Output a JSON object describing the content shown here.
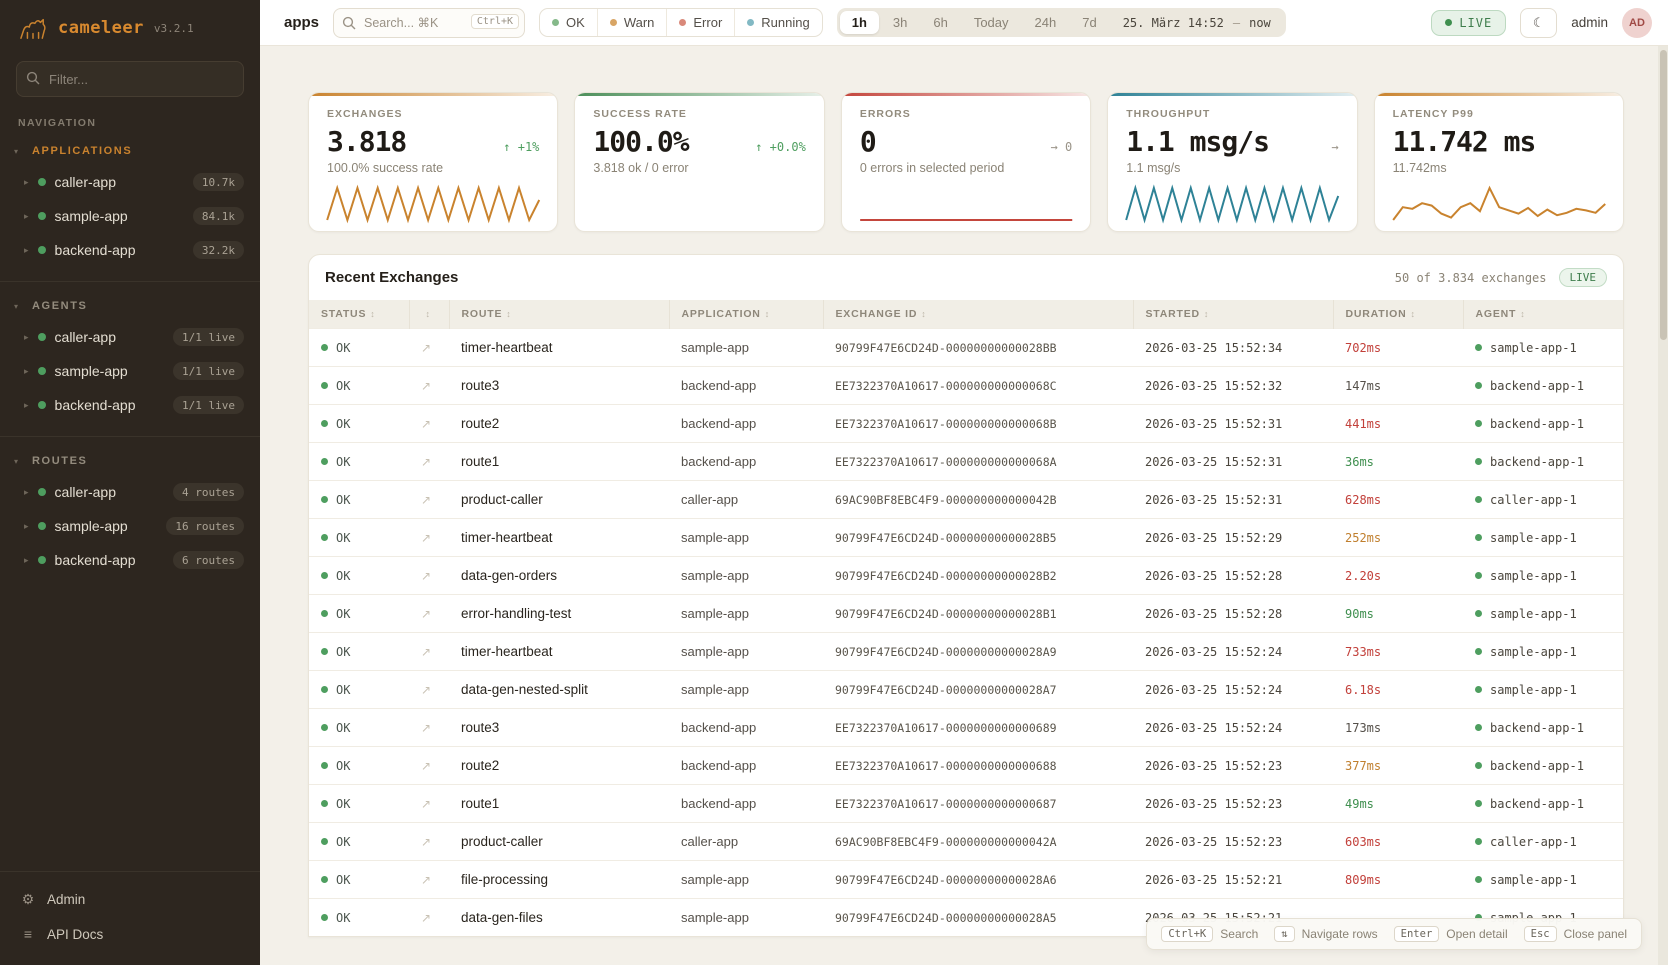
{
  "sidebar": {
    "logo": "cameleer",
    "version": "v3.2.1",
    "filter_placeholder": "Filter...",
    "nav_label": "NAVIGATION",
    "sections": [
      {
        "label": "APPLICATIONS",
        "accent": true,
        "items": [
          {
            "name": "caller-app",
            "badge": "10.7k"
          },
          {
            "name": "sample-app",
            "badge": "84.1k"
          },
          {
            "name": "backend-app",
            "badge": "32.2k"
          }
        ]
      },
      {
        "label": "AGENTS",
        "accent": false,
        "items": [
          {
            "name": "caller-app",
            "badge": "1/1 live"
          },
          {
            "name": "sample-app",
            "badge": "1/1 live"
          },
          {
            "name": "backend-app",
            "badge": "1/1 live"
          }
        ]
      },
      {
        "label": "ROUTES",
        "accent": false,
        "items": [
          {
            "name": "caller-app",
            "badge": "4 routes"
          },
          {
            "name": "sample-app",
            "badge": "16 routes"
          },
          {
            "name": "backend-app",
            "badge": "6 routes"
          }
        ]
      }
    ],
    "footer": [
      {
        "icon": "gear",
        "label": "Admin"
      },
      {
        "icon": "list",
        "label": "API Docs"
      }
    ]
  },
  "topbar": {
    "context": "apps",
    "search_placeholder": "Search... ⌘K",
    "search_kbd": "Ctrl+K",
    "status_filters": [
      {
        "label": "OK",
        "color": "#85b98a"
      },
      {
        "label": "Warn",
        "color": "#d8a565"
      },
      {
        "label": "Error",
        "color": "#d9897a"
      },
      {
        "label": "Running",
        "color": "#82b9c4"
      }
    ],
    "time_ranges": [
      "1h",
      "3h",
      "6h",
      "Today",
      "24h",
      "7d"
    ],
    "active_range": "1h",
    "date_label": "25. März 14:52",
    "date_sep": "—",
    "date_end": "now",
    "live_label": "LIVE",
    "user": "admin",
    "avatar": "AD"
  },
  "kpis": [
    {
      "label": "EXCHANGES",
      "value": "3.818",
      "delta_dir": "up",
      "delta": "+1%",
      "subtitle": "100.0% success rate",
      "accent": "#c9832e",
      "spark": [
        1,
        9,
        1,
        9,
        1,
        9,
        1,
        9,
        1,
        9,
        1,
        9,
        1,
        9,
        1,
        9,
        1,
        9,
        1,
        9,
        1,
        6
      ]
    },
    {
      "label": "SUCCESS RATE",
      "value": "100.0%",
      "delta_dir": "up",
      "delta": "+0.0%",
      "subtitle": "3.818 ok / 0 error",
      "accent": "#4c8f5a",
      "spark": null
    },
    {
      "label": "ERRORS",
      "value": "0",
      "delta_dir": "flat",
      "delta": "0",
      "subtitle": "0 errors in selected period",
      "accent": "#c4463d",
      "spark": [
        0,
        0
      ]
    },
    {
      "label": "THROUGHPUT",
      "value": "1.1 msg/s",
      "delta_dir": "flat",
      "delta": "",
      "subtitle": "1.1 msg/s",
      "accent": "#2e8296",
      "spark": [
        1,
        9,
        1,
        9,
        1,
        9,
        1,
        9,
        1,
        9,
        1,
        9,
        1,
        9,
        1,
        9,
        1,
        9,
        1,
        9,
        1,
        9,
        1,
        7
      ]
    },
    {
      "label": "LATENCY P99",
      "value": "11.742 ms",
      "delta_dir": null,
      "delta": null,
      "subtitle": "11.742ms",
      "accent": "#c9832e",
      "spark": [
        2.8,
        4.4,
        4.2,
        4.9,
        4.6,
        3.6,
        3.1,
        4.4,
        4.9,
        3.9,
        6.8,
        4.4,
        4.0,
        3.6,
        4.3,
        3.3,
        4.1,
        3.4,
        3.7,
        4.2,
        4.0,
        3.7,
        4.8
      ]
    }
  ],
  "table": {
    "title": "Recent Exchanges",
    "meta": "50 of 3.834 exchanges",
    "live": "LIVE",
    "columns": [
      "STATUS",
      "",
      "ROUTE",
      "APPLICATION",
      "EXCHANGE ID",
      "STARTED",
      "DURATION",
      "AGENT"
    ],
    "rows": [
      {
        "status": "OK",
        "route": "timer-heartbeat",
        "app": "sample-app",
        "id": "90799F47E6CD24D-00000000000028BB",
        "started": "2026-03-25 15:52:34",
        "duration": "702ms",
        "tone": "slow",
        "agent": "sample-app-1"
      },
      {
        "status": "OK",
        "route": "route3",
        "app": "backend-app",
        "id": "EE7322370A10617-000000000000068C",
        "started": "2026-03-25 15:52:32",
        "duration": "147ms",
        "tone": "mid",
        "agent": "backend-app-1"
      },
      {
        "status": "OK",
        "route": "route2",
        "app": "backend-app",
        "id": "EE7322370A10617-000000000000068B",
        "started": "2026-03-25 15:52:31",
        "duration": "441ms",
        "tone": "slow",
        "agent": "backend-app-1"
      },
      {
        "status": "OK",
        "route": "route1",
        "app": "backend-app",
        "id": "EE7322370A10617-000000000000068A",
        "started": "2026-03-25 15:52:31",
        "duration": "36ms",
        "tone": "fast",
        "agent": "backend-app-1"
      },
      {
        "status": "OK",
        "route": "product-caller",
        "app": "caller-app",
        "id": "69AC90BF8EBC4F9-000000000000042B",
        "started": "2026-03-25 15:52:31",
        "duration": "628ms",
        "tone": "slow",
        "agent": "caller-app-1"
      },
      {
        "status": "OK",
        "route": "timer-heartbeat",
        "app": "sample-app",
        "id": "90799F47E6CD24D-00000000000028B5",
        "started": "2026-03-25 15:52:29",
        "duration": "252ms",
        "tone": "warn",
        "agent": "sample-app-1"
      },
      {
        "status": "OK",
        "route": "data-gen-orders",
        "app": "sample-app",
        "id": "90799F47E6CD24D-00000000000028B2",
        "started": "2026-03-25 15:52:28",
        "duration": "2.20s",
        "tone": "slow",
        "agent": "sample-app-1"
      },
      {
        "status": "OK",
        "route": "error-handling-test",
        "app": "sample-app",
        "id": "90799F47E6CD24D-00000000000028B1",
        "started": "2026-03-25 15:52:28",
        "duration": "90ms",
        "tone": "fast",
        "agent": "sample-app-1"
      },
      {
        "status": "OK",
        "route": "timer-heartbeat",
        "app": "sample-app",
        "id": "90799F47E6CD24D-00000000000028A9",
        "started": "2026-03-25 15:52:24",
        "duration": "733ms",
        "tone": "slow",
        "agent": "sample-app-1"
      },
      {
        "status": "OK",
        "route": "data-gen-nested-split",
        "app": "sample-app",
        "id": "90799F47E6CD24D-00000000000028A7",
        "started": "2026-03-25 15:52:24",
        "duration": "6.18s",
        "tone": "slow",
        "agent": "sample-app-1"
      },
      {
        "status": "OK",
        "route": "route3",
        "app": "backend-app",
        "id": "EE7322370A10617-0000000000000689",
        "started": "2026-03-25 15:52:24",
        "duration": "173ms",
        "tone": "mid",
        "agent": "backend-app-1"
      },
      {
        "status": "OK",
        "route": "route2",
        "app": "backend-app",
        "id": "EE7322370A10617-0000000000000688",
        "started": "2026-03-25 15:52:23",
        "duration": "377ms",
        "tone": "warn",
        "agent": "backend-app-1"
      },
      {
        "status": "OK",
        "route": "route1",
        "app": "backend-app",
        "id": "EE7322370A10617-0000000000000687",
        "started": "2026-03-25 15:52:23",
        "duration": "49ms",
        "tone": "fast",
        "agent": "backend-app-1"
      },
      {
        "status": "OK",
        "route": "product-caller",
        "app": "caller-app",
        "id": "69AC90BF8EBC4F9-000000000000042A",
        "started": "2026-03-25 15:52:23",
        "duration": "603ms",
        "tone": "slow",
        "agent": "caller-app-1"
      },
      {
        "status": "OK",
        "route": "file-processing",
        "app": "sample-app",
        "id": "90799F47E6CD24D-00000000000028A6",
        "started": "2026-03-25 15:52:21",
        "duration": "809ms",
        "tone": "slow",
        "agent": "sample-app-1"
      },
      {
        "status": "OK",
        "route": "data-gen-files",
        "app": "sample-app",
        "id": "90799F47E6CD24D-00000000000028A5",
        "started": "2026-03-25 15:52:21",
        "duration": "",
        "tone": "mid",
        "agent": "sample-app-1"
      }
    ]
  },
  "shortcuts": [
    {
      "keys": "Ctrl+K",
      "label": "Search"
    },
    {
      "keys": "⇅",
      "label": "Navigate rows"
    },
    {
      "keys": "Enter",
      "label": "Open detail"
    },
    {
      "keys": "Esc",
      "label": "Close panel"
    }
  ],
  "colors": {
    "duration": {
      "slow": "#c2403a",
      "warn": "#c07f2e",
      "fast": "#3f8f4f",
      "mid": "#55504a"
    },
    "delta_up": "#4e9e5f",
    "delta_flat": "#9a9488",
    "status_ok": "#4e9e5f"
  }
}
